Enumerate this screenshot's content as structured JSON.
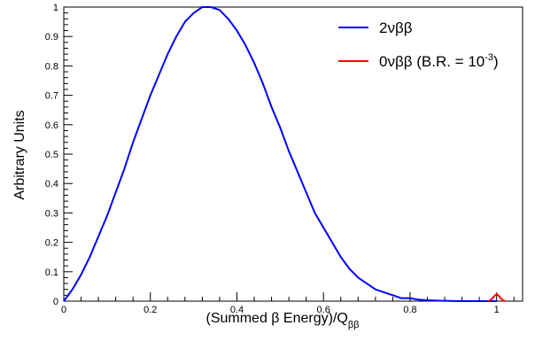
{
  "chart_data": {
    "type": "line",
    "title": "",
    "xlabel": "(Summed β Energy)/Q",
    "xlabel_sub": "ββ",
    "ylabel": "Arbitrary Units",
    "xlim": [
      0,
      1.06
    ],
    "ylim": [
      0,
      1
    ],
    "x_ticks": [
      "0",
      "0.2",
      "0.4",
      "0.6",
      "0.8",
      "1"
    ],
    "y_ticks": [
      "0",
      "0.1",
      "0.2",
      "0.3",
      "0.4",
      "0.5",
      "0.6",
      "0.7",
      "0.8",
      "0.9",
      "1"
    ],
    "grid": false,
    "legend_position": "top-right",
    "series": [
      {
        "name": "2νββ",
        "color": "#0000ff",
        "x": [
          0,
          0.02,
          0.04,
          0.06,
          0.08,
          0.1,
          0.12,
          0.14,
          0.16,
          0.18,
          0.2,
          0.22,
          0.24,
          0.26,
          0.28,
          0.3,
          0.32,
          0.34,
          0.36,
          0.38,
          0.4,
          0.42,
          0.44,
          0.46,
          0.48,
          0.5,
          0.52,
          0.54,
          0.56,
          0.58,
          0.6,
          0.62,
          0.64,
          0.66,
          0.68,
          0.7,
          0.72,
          0.74,
          0.76,
          0.78,
          0.8,
          0.82,
          0.84,
          0.86,
          0.88,
          0.9,
          0.92,
          0.94,
          0.96,
          0.98,
          1.0
        ],
        "y": [
          0,
          0.04,
          0.09,
          0.15,
          0.22,
          0.29,
          0.37,
          0.45,
          0.54,
          0.62,
          0.7,
          0.77,
          0.84,
          0.9,
          0.95,
          0.98,
          1.0,
          1.0,
          0.99,
          0.96,
          0.92,
          0.87,
          0.81,
          0.74,
          0.66,
          0.59,
          0.51,
          0.44,
          0.37,
          0.3,
          0.25,
          0.2,
          0.15,
          0.11,
          0.08,
          0.06,
          0.04,
          0.03,
          0.02,
          0.01,
          0.01,
          0.005,
          0.003,
          0.002,
          0.001,
          0.0005,
          0,
          0,
          0,
          0,
          0
        ]
      },
      {
        "name": "0νββ (B.R. = 10",
        "name_sup": "-3",
        "name_suffix": ")",
        "color": "#ff0000",
        "x": [
          0.98,
          0.985,
          0.99,
          0.995,
          1.0,
          1.005,
          1.01,
          1.015,
          1.02
        ],
        "y": [
          0,
          0.003,
          0.009,
          0.018,
          0.024,
          0.018,
          0.009,
          0.003,
          0
        ]
      }
    ]
  }
}
